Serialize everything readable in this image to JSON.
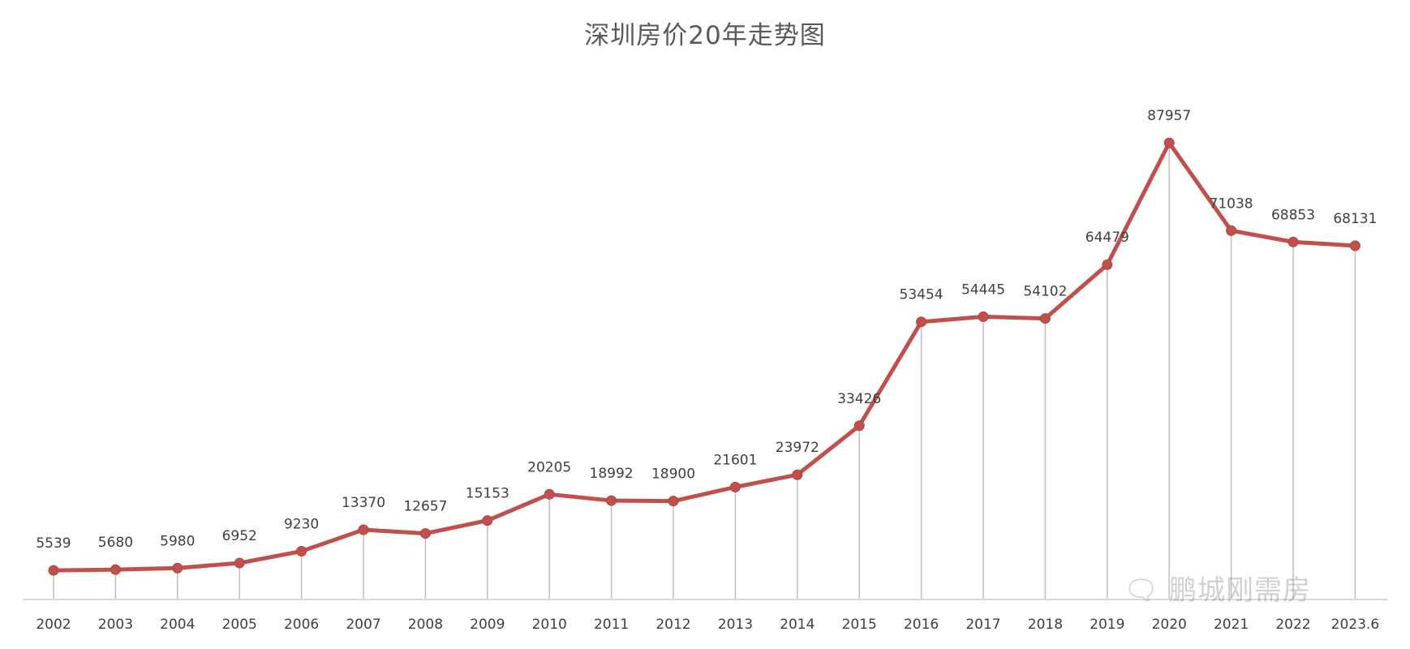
{
  "chart_data": {
    "type": "line",
    "title": "深圳房价20年走势图",
    "xlabel": "",
    "ylabel": "",
    "categories": [
      "2002",
      "2003",
      "2004",
      "2005",
      "2006",
      "2007",
      "2008",
      "2009",
      "2010",
      "2011",
      "2012",
      "2013",
      "2014",
      "2015",
      "2016",
      "2017",
      "2018",
      "2019",
      "2020",
      "2021",
      "2022",
      "2023.6"
    ],
    "series": [
      {
        "name": "深圳房价",
        "color": "#C0504D",
        "values": [
          5539,
          5680,
          5980,
          6952,
          9230,
          13370,
          12657,
          15153,
          20205,
          18992,
          18900,
          21601,
          23972,
          33426,
          53454,
          54445,
          54102,
          64479,
          87957,
          71038,
          68853,
          68131
        ]
      }
    ],
    "ylim": [
      0,
      90000
    ],
    "grid": false,
    "drop_lines": true,
    "data_labels": true,
    "legend": "none"
  },
  "watermark": "鹏城刚需房",
  "colors": {
    "line": "#C0504D",
    "drop_line": "#BFBFBF",
    "axis": "#D9D9D9",
    "text": "#404040"
  }
}
